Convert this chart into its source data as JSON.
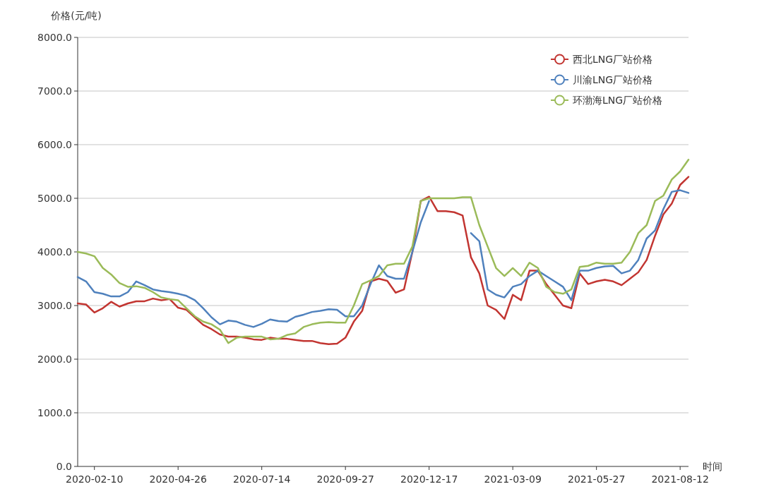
{
  "chart_data": {
    "type": "line",
    "xlabel": "时间",
    "ylabel": "价格(元/吨)",
    "categories": [
      null,
      null,
      "2020-02-10",
      null,
      null,
      null,
      null,
      null,
      null,
      null,
      null,
      null,
      "2020-04-26",
      null,
      null,
      null,
      null,
      null,
      null,
      null,
      null,
      null,
      "2020-07-14",
      null,
      null,
      null,
      null,
      null,
      null,
      null,
      null,
      null,
      "2020-09-27",
      null,
      null,
      null,
      null,
      null,
      null,
      null,
      null,
      null,
      "2020-12-17",
      null,
      null,
      null,
      null,
      null,
      null,
      null,
      null,
      null,
      "2021-03-09",
      null,
      null,
      null,
      null,
      null,
      null,
      null,
      null,
      null,
      "2021-05-27",
      null,
      null,
      null,
      null,
      null,
      null,
      null,
      null,
      null,
      "2021-08-12",
      null
    ],
    "series": [
      {
        "name": "西北LNG厂站价格",
        "color": "#c23531",
        "values": [
          3040,
          3020,
          2870,
          2950,
          3070,
          2980,
          3040,
          3080,
          3080,
          3130,
          3100,
          3120,
          2960,
          2920,
          2780,
          2640,
          2560,
          2460,
          2420,
          2420,
          2400,
          2370,
          2360,
          2400,
          2380,
          2380,
          2360,
          2340,
          2340,
          2300,
          2280,
          2290,
          2400,
          2700,
          2900,
          3450,
          3500,
          3460,
          3240,
          3300,
          4000,
          4950,
          5030,
          4760,
          4760,
          4740,
          4680,
          3900,
          3600,
          3000,
          2920,
          2750,
          3200,
          3100,
          3650,
          3650,
          3400,
          3200,
          3000,
          2950,
          3600,
          3400,
          3450,
          3480,
          3450,
          3380,
          3500,
          3620,
          3850,
          4300,
          4700,
          4900,
          5250,
          5400
        ]
      },
      {
        "name": "川渝LNG厂站价格",
        "color": "#4f81bd",
        "values": [
          3530,
          3450,
          3250,
          3220,
          3170,
          3170,
          3250,
          3450,
          3380,
          3300,
          3270,
          3250,
          3220,
          3180,
          3100,
          2950,
          2780,
          2650,
          2720,
          2700,
          2640,
          2600,
          2660,
          2740,
          2710,
          2700,
          2790,
          2830,
          2880,
          2900,
          2930,
          2920,
          2800,
          2800,
          3000,
          3400,
          3750,
          3550,
          3500,
          3500,
          4000,
          4550,
          4950,
          null,
          null,
          null,
          null,
          4350,
          4200,
          3300,
          3200,
          3150,
          3350,
          3400,
          3550,
          3650,
          3550,
          3450,
          3350,
          3100,
          3650,
          3650,
          3700,
          3730,
          3740,
          3600,
          3650,
          3850,
          4250,
          4400,
          4800,
          5120,
          5150,
          5100
        ]
      },
      {
        "name": "环渤海LNG厂站价格",
        "color": "#9bbb59",
        "values": [
          4000,
          3970,
          3920,
          3700,
          3580,
          3420,
          3350,
          3360,
          3330,
          3250,
          3150,
          3120,
          3100,
          2950,
          2800,
          2700,
          2650,
          2550,
          2300,
          2400,
          2420,
          2420,
          2420,
          2370,
          2380,
          2450,
          2480,
          2600,
          2650,
          2680,
          2690,
          2680,
          2680,
          3000,
          3400,
          3470,
          3550,
          3750,
          3780,
          3780,
          4100,
          4950,
          5000,
          5000,
          5000,
          5000,
          5020,
          5020,
          4500,
          4100,
          3700,
          3550,
          3700,
          3550,
          3800,
          3700,
          3350,
          3250,
          3220,
          3300,
          3720,
          3740,
          3800,
          3780,
          3780,
          3800,
          4000,
          4350,
          4500,
          4950,
          5050,
          5350,
          5500,
          5720
        ]
      }
    ],
    "ylim": [
      0,
      8000
    ],
    "yticks": [
      {
        "value": 0,
        "label": "0.0"
      },
      {
        "value": 1000,
        "label": "1000.0"
      },
      {
        "value": 2000,
        "label": "2000.0"
      },
      {
        "value": 3000,
        "label": "3000.0"
      },
      {
        "value": 4000,
        "label": "4000.0"
      },
      {
        "value": 5000,
        "label": "5000.0"
      },
      {
        "value": 6000,
        "label": "6000.0"
      },
      {
        "value": 7000,
        "label": "7000.0"
      },
      {
        "value": 8000,
        "label": "8000.0"
      }
    ],
    "grid": "y",
    "legend": "top right",
    "line_style": "solid"
  }
}
